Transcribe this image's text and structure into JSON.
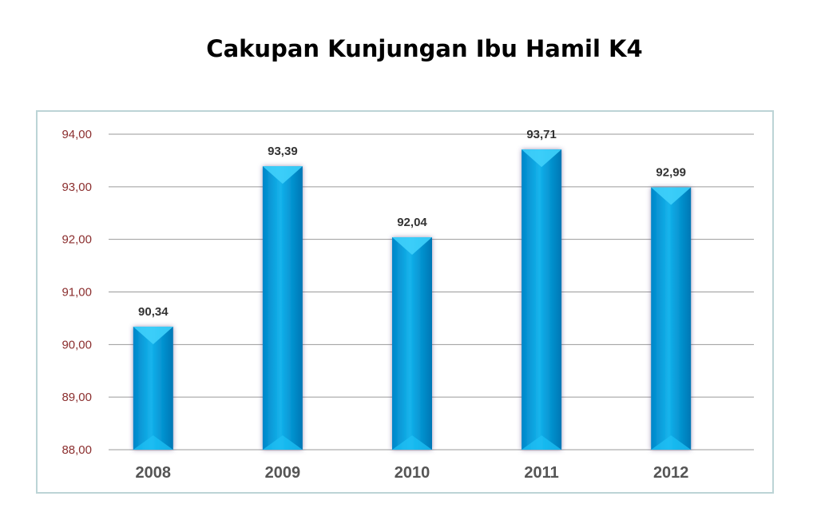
{
  "title": "Cakupan Kunjungan Ibu Hamil K4",
  "chart_data": {
    "type": "bar",
    "title": "Cakupan Kunjungan Ibu Hamil K4",
    "categories": [
      "2008",
      "2009",
      "2010",
      "2011",
      "2012"
    ],
    "values": [
      90.34,
      93.39,
      92.04,
      93.71,
      92.99
    ],
    "value_labels": [
      "90,34",
      "93,39",
      "92,04",
      "93,71",
      "92,99"
    ],
    "yticks": [
      88,
      89,
      90,
      91,
      92,
      93,
      94
    ],
    "ytick_labels": [
      "88,00",
      "89,00",
      "90,00",
      "91,00",
      "92,00",
      "93,00",
      "94,00"
    ],
    "ylim": [
      88,
      94
    ],
    "grid": true,
    "legend": "none",
    "colors": {
      "bar": "#00a3e0",
      "bar_light": "#3fd0fb",
      "bar_dark": "#0079b8",
      "grid": "#9a9a9a",
      "ytick": "#8b2e2e",
      "xtick": "#555555"
    }
  }
}
